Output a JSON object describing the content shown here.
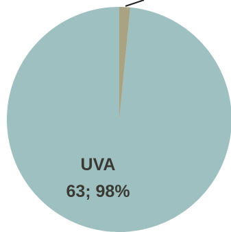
{
  "chart_data": {
    "type": "pie",
    "slices": [
      {
        "label": "UVA",
        "value": 63,
        "percent": "98%",
        "color": "#9fc0c0",
        "data_label": "63; 98%"
      },
      {
        "label": "",
        "value": 1,
        "percent": "",
        "color": "#a9a283",
        "data_label": ""
      }
    ],
    "leader_line_color": "#1f1f1f",
    "title": "",
    "legend": "none"
  }
}
